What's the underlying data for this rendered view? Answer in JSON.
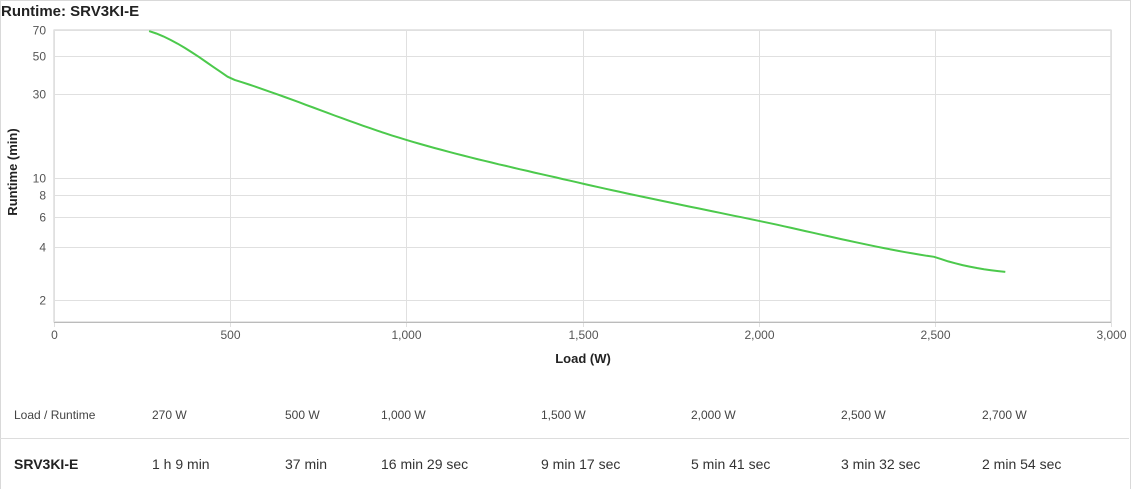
{
  "chart_data": {
    "type": "line",
    "title": "Runtime: SRV3KI-E",
    "xlabel": "Load (W)",
    "ylabel": "Runtime (min)",
    "xlim": [
      0,
      3000
    ],
    "ylim": [
      1.5,
      70
    ],
    "y_scale": "log",
    "x_ticks": [
      0,
      500,
      1000,
      1500,
      2000,
      2500,
      3000
    ],
    "x_tick_labels": [
      "0",
      "500",
      "1,000",
      "1,500",
      "2,000",
      "2,500",
      "3,000"
    ],
    "y_ticks": [
      2,
      4,
      6,
      8,
      10,
      30,
      50,
      70
    ],
    "y_tick_labels": [
      "2",
      "4",
      "6",
      "8",
      "10",
      "30",
      "50",
      "70"
    ],
    "grid": true,
    "legend": "none",
    "series": [
      {
        "color": "#4cc94c",
        "x": [
          270,
          500,
          1000,
          1500,
          2000,
          2500,
          2700
        ],
        "y": [
          69,
          37,
          16.48,
          9.28,
          5.68,
          3.53,
          2.9
        ]
      }
    ]
  },
  "table": {
    "header_label": "Load / Runtime",
    "loads": [
      "270 W",
      "500 W",
      "1,000 W",
      "1,500 W",
      "2,000 W",
      "2,500 W",
      "2,700 W"
    ],
    "model": "SRV3KI-E",
    "runtimes": [
      "1 h 9 min",
      "37 min",
      "16 min 29 sec",
      "9 min 17 sec",
      "5 min 41 sec",
      "3 min 32 sec",
      "2 min 54 sec"
    ]
  }
}
